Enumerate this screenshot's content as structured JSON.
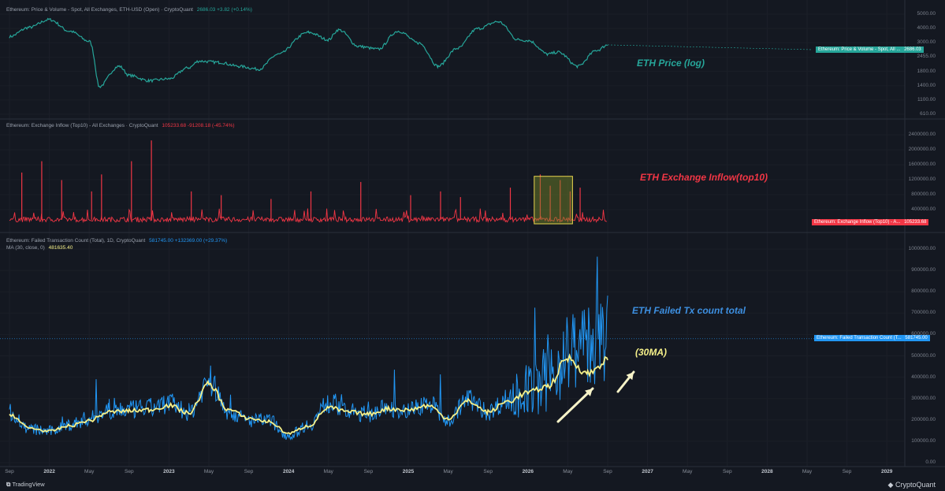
{
  "footer": {
    "tradingview_label": "TradingView",
    "cryptoquant_label": "CryptoQuant"
  },
  "colors": {
    "background": "#141821",
    "price": "#26a69a",
    "inflow": "#f23645",
    "failed_tx": "#2196f3",
    "ma": "#f5f089",
    "highlight_box": "#e8d44d"
  },
  "x_axis": {
    "ticks": [
      "Sep",
      "2022",
      "May",
      "Sep",
      "2023",
      "May",
      "Sep",
      "2024",
      "May",
      "Sep",
      "2025",
      "May",
      "Sep",
      "2026",
      "May",
      "Sep",
      "2027",
      "May",
      "Sep",
      "2028",
      "May",
      "Sep",
      "2029"
    ]
  },
  "panels": {
    "price": {
      "legend_name": "Ethereum: Price & Volume - Spot, All Exchanges, ETH-USD (Open) · CryptoQuant",
      "legend_value": "2686.03 +3.82 (+0.14%)",
      "tag_label": "Ethereum: Price & Volume - Spot, All ...",
      "tag_value": "2686.03",
      "annotation": "ETH Price (log)",
      "y_ticks": [
        "5000.00",
        "4000.00",
        "3000.00",
        "2455.00",
        "1800.00",
        "1400.00",
        "1100.00",
        "610.00"
      ]
    },
    "inflow": {
      "legend_name": "Ethereum: Exchange Inflow (Top10) - All Exchanges · CryptoQuant",
      "legend_value": "105233.68 -91208.18 (-45.74%)",
      "tag_label": "Ethereum: Exchange Inflow (Top10) - A...",
      "tag_value": "105233.68",
      "annotation": "ETH Exchange Inflow(top10)",
      "y_ticks": [
        "2400000.00",
        "2000000.00",
        "1600000.00",
        "1200000.00",
        "800000.00",
        "400000.00"
      ]
    },
    "failed": {
      "legend_name": "Ethereum: Failed Transaction Count (Total), 1D, CryptoQuant",
      "legend_value": "581745.00 +132369.00 (+29.37%)",
      "legend2_name": "MA (30, close, 0)",
      "legend2_value": "481635.40",
      "tag_label": "Ethereum: Failed Transaction Count (T...",
      "tag_value": "581745.00",
      "annotation": "ETH Failed Tx count total",
      "annotation_ma": "(30MA)",
      "y_ticks": [
        "1000000.00",
        "900000.00",
        "800000.00",
        "700000.00",
        "600000.00",
        "500000.00",
        "400000.00",
        "300000.00",
        "200000.00",
        "100000.00",
        "0.00"
      ]
    }
  },
  "chart_data": [
    {
      "type": "line",
      "title": "Ethereum: Price & Volume - Spot, All Exchanges, ETH-USD (Open)",
      "log_scale": true,
      "x": [
        "2021-09",
        "2021-11",
        "2022-01",
        "2022-03",
        "2022-05",
        "2022-06",
        "2022-08",
        "2022-09",
        "2022-11",
        "2023-01",
        "2023-03",
        "2023-04",
        "2023-06",
        "2023-08",
        "2023-10",
        "2023-12",
        "2024-03",
        "2024-05",
        "2024-06",
        "2024-08",
        "2024-10",
        "2024-12",
        "2025-02",
        "2025-04",
        "2025-06",
        "2025-08",
        "2025-10",
        "2025-12",
        "2026-01",
        "2026-03",
        "2026-04",
        "2026-06",
        "2026-08",
        "2026-09"
      ],
      "series": [
        {
          "name": "Ethereum: Price & Volume - Spot, All Exchanges, ETH-USD (Open)",
          "values": [
            3200,
            3900,
            4600,
            3600,
            2900,
            1100,
            1700,
            1400,
            1250,
            1300,
            1650,
            1900,
            1850,
            1700,
            1600,
            2200,
            3500,
            3000,
            3700,
            2600,
            2450,
            3600,
            2800,
            1700,
            2500,
            3800,
            4400,
            3000,
            2950,
            2200,
            2300,
            1700,
            2400,
            2686
          ]
        }
      ],
      "ylim": [
        610,
        5000
      ]
    },
    {
      "type": "bar",
      "title": "Ethereum: Exchange Inflow (Top10) - All Exchanges",
      "x": [
        "2021-10",
        "2021-12",
        "2022-02",
        "2022-05",
        "2022-06",
        "2022-09",
        "2022-11",
        "2023-03",
        "2023-06",
        "2023-11",
        "2024-03",
        "2024-08",
        "2025-01",
        "2025-04",
        "2025-06",
        "2025-11",
        "2026-02",
        "2026-03",
        "2026-04",
        "2026-05",
        "2026-06"
      ],
      "series": [
        {
          "name": "Ethereum: Exchange Inflow (Top10) - All Exchanges",
          "values": [
            1400000,
            1700000,
            1200000,
            900000,
            1350000,
            1700000,
            2250000,
            900000,
            800000,
            700000,
            900000,
            1150000,
            800000,
            900000,
            750000,
            1000000,
            1350000,
            1050000,
            1200000,
            900000,
            1000000
          ]
        }
      ],
      "baseline": 150000,
      "latest": 105233.68,
      "ylim": [
        0,
        2400000
      ]
    },
    {
      "type": "line",
      "title": "Ethereum: Failed Transaction Count (Total), 1D",
      "x": [
        "2021-09",
        "2021-11",
        "2022-01",
        "2022-03",
        "2022-05",
        "2022-07",
        "2022-09",
        "2022-11",
        "2023-01",
        "2023-03",
        "2023-05",
        "2023-07",
        "2023-09",
        "2023-11",
        "2024-01",
        "2024-03",
        "2024-05",
        "2024-07",
        "2024-09",
        "2024-11",
        "2025-01",
        "2025-03",
        "2025-05",
        "2025-07",
        "2025-09",
        "2025-11",
        "2026-01",
        "2026-03",
        "2026-05",
        "2026-07",
        "2026-09"
      ],
      "series": [
        {
          "name": "Ethereum: Failed Transaction Count (Total)",
          "values": [
            240000,
            160000,
            150000,
            180000,
            210000,
            250000,
            250000,
            260000,
            280000,
            240000,
            380000,
            240000,
            200000,
            200000,
            130000,
            180000,
            280000,
            240000,
            230000,
            260000,
            250000,
            280000,
            200000,
            300000,
            240000,
            300000,
            340000,
            380000,
            520000,
            560000,
            581745
          ]
        },
        {
          "name": "MA (30, close, 0)",
          "values": [
            230000,
            165000,
            150000,
            175000,
            200000,
            240000,
            245000,
            250000,
            270000,
            235000,
            370000,
            250000,
            210000,
            195000,
            140000,
            175000,
            260000,
            240000,
            230000,
            255000,
            250000,
            270000,
            210000,
            290000,
            240000,
            290000,
            330000,
            360000,
            490000,
            420000,
            481635.4
          ]
        }
      ],
      "ylim": [
        0,
        1000000
      ]
    }
  ]
}
